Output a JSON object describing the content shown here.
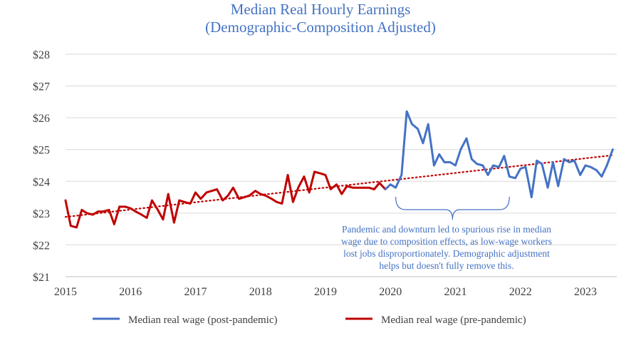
{
  "chart_data": {
    "type": "line",
    "title": "Median Real Hourly Earnings",
    "subtitle": "(Demographic-Composition Adjusted)",
    "xlim": [
      2015,
      2023.75
    ],
    "ylim": [
      21,
      28
    ],
    "x_ticks": [
      2015,
      2016,
      2017,
      2018,
      2019,
      2020,
      2021,
      2022,
      2023
    ],
    "x_tick_labels": [
      "2015",
      "2016",
      "2017",
      "2018",
      "2019",
      "2020",
      "2021",
      "2022",
      "2023"
    ],
    "y_ticks": [
      21,
      22,
      23,
      24,
      25,
      26,
      27,
      28
    ],
    "y_tick_labels": [
      "$21",
      "$22",
      "$23",
      "$24",
      "$25",
      "$26",
      "$27",
      "$28"
    ],
    "grid": "horizontal",
    "legend_position": "bottom",
    "series": [
      {
        "name": "Median real wage (post-pandemic)",
        "color": "#4472C4",
        "points": [
          [
            2019.92,
            23.75
          ],
          [
            2020.0,
            23.9
          ],
          [
            2020.08,
            23.8
          ],
          [
            2020.17,
            24.2
          ],
          [
            2020.25,
            26.2
          ],
          [
            2020.33,
            25.8
          ],
          [
            2020.42,
            25.65
          ],
          [
            2020.5,
            25.2
          ],
          [
            2020.58,
            25.8
          ],
          [
            2020.67,
            24.5
          ],
          [
            2020.75,
            24.85
          ],
          [
            2020.83,
            24.6
          ],
          [
            2020.92,
            24.6
          ],
          [
            2021.0,
            24.5
          ],
          [
            2021.08,
            25.0
          ],
          [
            2021.17,
            25.35
          ],
          [
            2021.25,
            24.7
          ],
          [
            2021.33,
            24.55
          ],
          [
            2021.42,
            24.5
          ],
          [
            2021.5,
            24.2
          ],
          [
            2021.58,
            24.5
          ],
          [
            2021.67,
            24.45
          ],
          [
            2021.75,
            24.8
          ],
          [
            2021.83,
            24.15
          ],
          [
            2021.92,
            24.1
          ],
          [
            2022.0,
            24.4
          ],
          [
            2022.08,
            24.45
          ],
          [
            2022.17,
            23.5
          ],
          [
            2022.25,
            24.65
          ],
          [
            2022.33,
            24.55
          ],
          [
            2022.42,
            23.8
          ],
          [
            2022.5,
            24.6
          ],
          [
            2022.58,
            23.85
          ],
          [
            2022.67,
            24.7
          ],
          [
            2022.75,
            24.6
          ],
          [
            2022.83,
            24.65
          ],
          [
            2022.92,
            24.2
          ],
          [
            2023.0,
            24.5
          ],
          [
            2023.08,
            24.45
          ],
          [
            2023.17,
            24.35
          ],
          [
            2023.25,
            24.15
          ],
          [
            2023.33,
            24.5
          ],
          [
            2023.42,
            25.0
          ]
        ]
      },
      {
        "name": "Median real wage (pre-pandemic)",
        "color": "#C00000",
        "points": [
          [
            2015.0,
            23.4
          ],
          [
            2015.08,
            22.6
          ],
          [
            2015.17,
            22.55
          ],
          [
            2015.25,
            23.1
          ],
          [
            2015.33,
            23.0
          ],
          [
            2015.42,
            22.95
          ],
          [
            2015.5,
            23.05
          ],
          [
            2015.58,
            23.05
          ],
          [
            2015.67,
            23.1
          ],
          [
            2015.75,
            22.65
          ],
          [
            2015.83,
            23.2
          ],
          [
            2015.92,
            23.2
          ],
          [
            2016.0,
            23.15
          ],
          [
            2016.08,
            23.05
          ],
          [
            2016.17,
            22.95
          ],
          [
            2016.25,
            22.85
          ],
          [
            2016.33,
            23.4
          ],
          [
            2016.42,
            23.1
          ],
          [
            2016.5,
            22.8
          ],
          [
            2016.58,
            23.6
          ],
          [
            2016.67,
            22.7
          ],
          [
            2016.75,
            23.4
          ],
          [
            2016.83,
            23.35
          ],
          [
            2016.92,
            23.3
          ],
          [
            2017.0,
            23.65
          ],
          [
            2017.08,
            23.45
          ],
          [
            2017.17,
            23.65
          ],
          [
            2017.25,
            23.7
          ],
          [
            2017.33,
            23.75
          ],
          [
            2017.42,
            23.4
          ],
          [
            2017.5,
            23.55
          ],
          [
            2017.58,
            23.8
          ],
          [
            2017.67,
            23.45
          ],
          [
            2017.75,
            23.5
          ],
          [
            2017.83,
            23.55
          ],
          [
            2017.92,
            23.7
          ],
          [
            2018.0,
            23.6
          ],
          [
            2018.08,
            23.55
          ],
          [
            2018.17,
            23.45
          ],
          [
            2018.25,
            23.35
          ],
          [
            2018.33,
            23.3
          ],
          [
            2018.42,
            24.2
          ],
          [
            2018.5,
            23.35
          ],
          [
            2018.58,
            23.8
          ],
          [
            2018.67,
            24.15
          ],
          [
            2018.75,
            23.65
          ],
          [
            2018.83,
            24.3
          ],
          [
            2018.92,
            24.25
          ],
          [
            2019.0,
            24.2
          ],
          [
            2019.08,
            23.75
          ],
          [
            2019.17,
            23.9
          ],
          [
            2019.25,
            23.6
          ],
          [
            2019.33,
            23.85
          ],
          [
            2019.42,
            23.8
          ],
          [
            2019.5,
            23.8
          ],
          [
            2019.58,
            23.8
          ],
          [
            2019.67,
            23.8
          ],
          [
            2019.75,
            23.75
          ],
          [
            2019.83,
            23.95
          ],
          [
            2019.92,
            23.75
          ]
        ]
      },
      {
        "color": "#C00000",
        "style": "dotted",
        "points": [
          [
            2015.0,
            22.88
          ],
          [
            2023.42,
            24.82
          ]
        ]
      }
    ],
    "annotations": [
      {
        "type": "bracket",
        "x_range": [
          2020.08,
          2021.83
        ],
        "text_lines": [
          "Pandemic and downturn led to spurious rise in median",
          "wage due to composition effects, as low-wage workers",
          "lost jobs disproportionately. Demographic adjustment",
          "helps but doesn't fully remove this."
        ]
      }
    ]
  }
}
